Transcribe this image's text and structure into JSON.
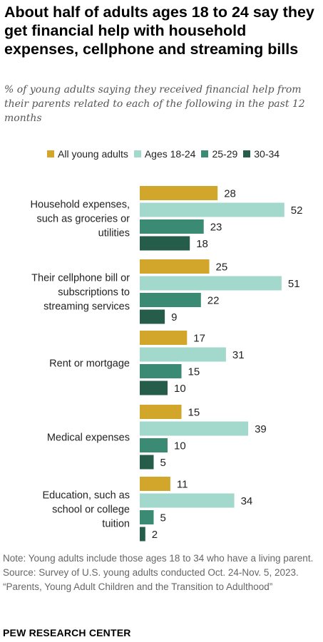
{
  "title": "About half of adults ages 18 to 24 say they get financial help with household expenses, cellphone and streaming bills",
  "subtitle": "% of young adults saying they received financial help from their parents related to each of the following in the past 12 months",
  "colors": {
    "all": "#d1a62b",
    "a18": "#a3d8cc",
    "a25": "#3b8a73",
    "a30": "#255c4a"
  },
  "chart_data": {
    "type": "bar",
    "orientation": "horizontal",
    "categories": [
      "Household expenses, such as groceries or utilities",
      "Their cellphone bill or subscriptions to streaming services",
      "Rent or mortgage",
      "Medical expenses",
      "Education, such as school or college tuition"
    ],
    "category_lines": [
      [
        "Household expenses,",
        "such as groceries or",
        "utilities"
      ],
      [
        "Their cellphone bill or",
        "subscriptions to",
        "streaming services"
      ],
      [
        "Rent or mortgage"
      ],
      [
        "Medical expenses"
      ],
      [
        "Education, such as",
        "school or college",
        "tuition"
      ]
    ],
    "series": [
      {
        "name": "All young adults",
        "values": [
          28,
          25,
          17,
          15,
          11
        ]
      },
      {
        "name": "Ages 18-24",
        "values": [
          52,
          51,
          31,
          39,
          34
        ]
      },
      {
        "name": "25-29",
        "values": [
          23,
          22,
          15,
          10,
          5
        ]
      },
      {
        "name": "30-34",
        "values": [
          18,
          9,
          10,
          5,
          2
        ]
      }
    ],
    "legend_position": "top",
    "grid": false
  },
  "notes": {
    "note": "Note: Young adults include those ages 18 to 34 who have a living parent.",
    "source": "Source: Survey of U.S. young adults conducted Oct. 24-Nov. 5, 2023.",
    "report": "“Parents, Young Adult Children and the Transition to Adulthood”"
  },
  "logo": "PEW RESEARCH CENTER"
}
